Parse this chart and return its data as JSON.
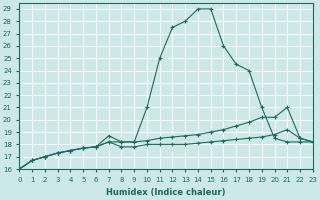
{
  "xlabel": "Humidex (Indice chaleur)",
  "background_color": "#cce8e8",
  "grid_color": "#ffffff",
  "line_color": "#1a6b5a",
  "xlim": [
    0,
    23
  ],
  "ylim": [
    16,
    29.5
  ],
  "xticks": [
    0,
    1,
    2,
    3,
    4,
    5,
    6,
    7,
    8,
    9,
    10,
    11,
    12,
    13,
    14,
    15,
    16,
    17,
    18,
    19,
    20,
    21,
    22,
    23
  ],
  "yticks": [
    16,
    17,
    18,
    19,
    20,
    21,
    22,
    23,
    24,
    25,
    26,
    27,
    28,
    29
  ],
  "series": [
    {
      "x": [
        0,
        1,
        2,
        3,
        4,
        5,
        6,
        7,
        8,
        9,
        10,
        11,
        12,
        13,
        14,
        15,
        16,
        17,
        18,
        19,
        20,
        21,
        22,
        23
      ],
      "y": [
        16,
        16.7,
        17,
        17.3,
        17.5,
        17.7,
        17.8,
        18.2,
        18.2,
        18.2,
        21.0,
        25.0,
        27.5,
        28.0,
        29.0,
        29.0,
        26.0,
        24.5,
        24.0,
        21.0,
        18.5,
        18.2,
        18.2,
        18.2
      ]
    },
    {
      "x": [
        0,
        1,
        2,
        3,
        4,
        5,
        6,
        7,
        8,
        9,
        10,
        11,
        12,
        13,
        14,
        15,
        16,
        17,
        18,
        19,
        20,
        21,
        22,
        23
      ],
      "y": [
        16,
        16.7,
        17,
        17.3,
        17.5,
        17.7,
        17.8,
        18.7,
        18.2,
        18.2,
        18.3,
        18.5,
        18.6,
        18.7,
        18.8,
        19.0,
        19.2,
        19.5,
        19.8,
        20.2,
        20.2,
        21.0,
        18.5,
        18.2
      ]
    },
    {
      "x": [
        0,
        1,
        2,
        3,
        4,
        5,
        6,
        7,
        8,
        9,
        10,
        11,
        12,
        13,
        14,
        15,
        16,
        17,
        18,
        19,
        20,
        21,
        22,
        23
      ],
      "y": [
        16,
        16.7,
        17,
        17.3,
        17.5,
        17.7,
        17.8,
        18.2,
        17.8,
        17.8,
        18.0,
        18.0,
        18.0,
        18.0,
        18.1,
        18.2,
        18.3,
        18.4,
        18.5,
        18.6,
        18.8,
        19.2,
        18.5,
        18.2
      ]
    }
  ]
}
